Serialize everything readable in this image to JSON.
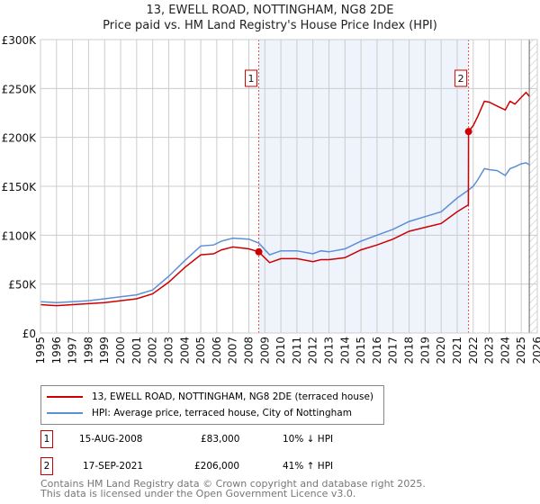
{
  "chart_data": {
    "type": "line",
    "title": "13, EWELL ROAD, NOTTINGHAM, NG8 2DE",
    "subtitle": "Price paid vs. HM Land Registry's House Price Index (HPI)",
    "xlim": [
      1995,
      2026
    ],
    "ylim": [
      0,
      300000
    ],
    "x_ticks": [
      "1995",
      "1996",
      "1997",
      "1998",
      "1999",
      "2000",
      "2001",
      "2002",
      "2003",
      "2004",
      "2005",
      "2006",
      "2007",
      "2008",
      "2009",
      "2010",
      "2011",
      "2012",
      "2013",
      "2014",
      "2015",
      "2016",
      "2017",
      "2018",
      "2019",
      "2020",
      "2021",
      "2022",
      "2023",
      "2024",
      "2025",
      "2026"
    ],
    "y_ticks": [
      {
        "v": 0,
        "label": "£0"
      },
      {
        "v": 50000,
        "label": "£50K"
      },
      {
        "v": 100000,
        "label": "£100K"
      },
      {
        "v": 150000,
        "label": "£150K"
      },
      {
        "v": 200000,
        "label": "£200K"
      },
      {
        "v": 250000,
        "label": "£250K"
      },
      {
        "v": 300000,
        "label": "£300K"
      }
    ],
    "grid": true,
    "shaded_range": [
      2008.62,
      2021.71
    ],
    "hatched_from": 2025.5,
    "series": [
      {
        "name": "13, EWELL ROAD, NOTTINGHAM, NG8 2DE (terraced house)",
        "color": "#cc0000",
        "x": [
          1995,
          1996,
          1997,
          1998,
          1999,
          2000,
          2001,
          2002,
          2003,
          2004,
          2005,
          2005.8,
          2006.3,
          2007,
          2008,
          2008.62,
          2009.3,
          2010,
          2011,
          2012,
          2012.5,
          2013,
          2014,
          2015,
          2016,
          2017,
          2018,
          2019,
          2020,
          2021,
          2021.7,
          2021.71,
          2022,
          2022.3,
          2022.7,
          2023,
          2023.5,
          2024,
          2024.3,
          2024.6,
          2025,
          2025.3,
          2025.5
        ],
        "y": [
          29000,
          28000,
          29000,
          30000,
          31000,
          33000,
          35000,
          40000,
          52000,
          67000,
          80000,
          81000,
          85000,
          88000,
          86000,
          83000,
          72000,
          76000,
          76000,
          73000,
          75000,
          75000,
          77000,
          85000,
          90000,
          96000,
          104000,
          108000,
          112000,
          124000,
          131000,
          206000,
          212000,
          222000,
          237000,
          236000,
          232000,
          228000,
          237000,
          234000,
          241000,
          246000,
          242000
        ]
      },
      {
        "name": "HPI: Average price, terraced house, City of Nottingham",
        "color": "#5b8fd6",
        "x": [
          1995,
          1996,
          1997,
          1998,
          1999,
          2000,
          2001,
          2002,
          2003,
          2004,
          2005,
          2005.8,
          2006.3,
          2007,
          2008,
          2008.62,
          2009.3,
          2010,
          2011,
          2012,
          2012.5,
          2013,
          2014,
          2015,
          2016,
          2017,
          2018,
          2019,
          2020,
          2021,
          2021.7,
          2022,
          2022.3,
          2022.7,
          2023,
          2023.5,
          2024,
          2024.3,
          2024.6,
          2025,
          2025.3,
          2025.5
        ],
        "y": [
          32000,
          31000,
          32000,
          33000,
          35000,
          37000,
          39000,
          44000,
          58000,
          74000,
          89000,
          90000,
          94000,
          97000,
          96000,
          92000,
          80000,
          84000,
          84000,
          81000,
          84000,
          83000,
          86000,
          94000,
          100000,
          106000,
          114000,
          119000,
          124000,
          138000,
          146000,
          150000,
          157000,
          168000,
          167000,
          166000,
          161000,
          168000,
          170000,
          173000,
          174000,
          172000
        ]
      }
    ],
    "sales": [
      {
        "id": "1",
        "date": "15-AUG-2008",
        "x": 2008.62,
        "price": 83000,
        "price_label": "£83,000",
        "hpi_diff": "10% ↓ HPI"
      },
      {
        "id": "2",
        "date": "17-SEP-2021",
        "x": 2021.71,
        "price": 206000,
        "price_label": "£206,000",
        "hpi_diff": "41% ↑ HPI"
      }
    ]
  },
  "footer": {
    "line1": "Contains HM Land Registry data © Crown copyright and database right 2025.",
    "line2": "This data is licensed under the Open Government Licence v3.0."
  }
}
